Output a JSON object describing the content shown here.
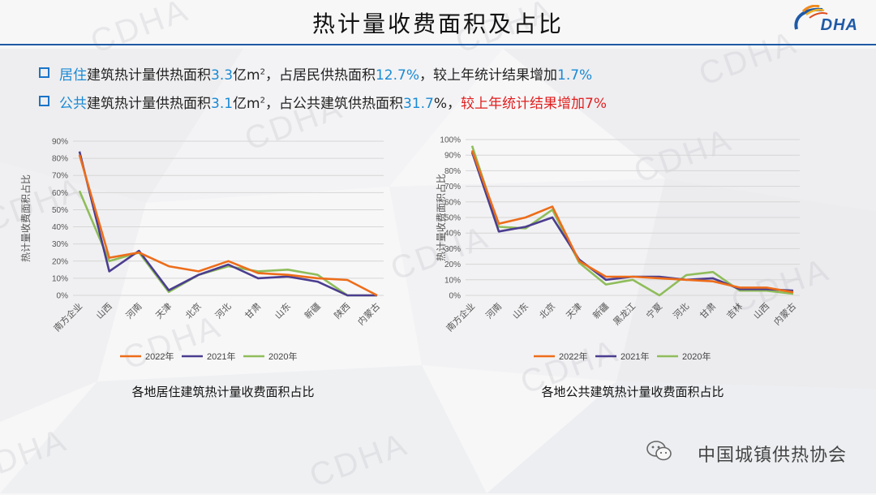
{
  "header": {
    "title": "热计量收费面积及占比",
    "logo_text": "DHA",
    "accent_color": "#1f5aa6"
  },
  "watermark": "CDHA",
  "bullets": [
    {
      "p1": "居住",
      "p2": "建筑热计量供热面积",
      "p3": "3.3",
      "p4": "亿m",
      "sup": "2",
      "p5": "，占居民供热面积",
      "p6": "12.7%",
      "p7": "，较上年统计结果增加",
      "p8": "1.7%"
    },
    {
      "p1": "公共",
      "p2": "建筑热计量供热面积",
      "p3": "3.1",
      "p4": "亿m",
      "sup": "2",
      "p5": "，占公共建筑供热面积",
      "p6": "31.7",
      "p7": "%，",
      "p8": "较上年统计结果增加7%"
    }
  ],
  "colors": {
    "2022年": "#ed6d1a",
    "2021年": "#4b3d8f",
    "2020年": "#8fbd5a",
    "highlight_blue": "#1a8ad4",
    "highlight_red": "#e02020"
  },
  "chart_data": [
    {
      "type": "line",
      "title": "各地居住建筑热计量收费面积占比",
      "ylabel": "热计量收费面积占比",
      "xlabel": "",
      "ylim": [
        0,
        0.9
      ],
      "yticks": [
        "0%",
        "10%",
        "20%",
        "30%",
        "40%",
        "50%",
        "60%",
        "70%",
        "80%",
        "90%"
      ],
      "grid": true,
      "legend": "bottom",
      "categories": [
        "南方企业",
        "山西",
        "河南",
        "天津",
        "北京",
        "河北",
        "甘肃",
        "山东",
        "新疆",
        "陕西",
        "内蒙古"
      ],
      "series": [
        {
          "name": "2022年",
          "values": [
            0.82,
            0.22,
            0.25,
            0.17,
            0.14,
            0.2,
            0.13,
            0.12,
            0.1,
            0.09,
            0.0
          ]
        },
        {
          "name": "2021年",
          "values": [
            0.84,
            0.14,
            0.26,
            0.03,
            0.12,
            0.18,
            0.1,
            0.11,
            0.08,
            0.0,
            0.0
          ]
        },
        {
          "name": "2020年",
          "values": [
            0.61,
            0.2,
            0.25,
            0.02,
            0.12,
            0.17,
            0.14,
            0.15,
            0.12,
            0.0,
            0.0
          ]
        }
      ]
    },
    {
      "type": "line",
      "title": "各地公共建筑热计量收费面积占比",
      "ylabel": "热计量收费面积占比",
      "xlabel": "",
      "ylim": [
        0,
        1.0
      ],
      "yticks": [
        "0%",
        "10%",
        "20%",
        "30%",
        "40%",
        "50%",
        "60%",
        "70%",
        "80%",
        "90%",
        "100%"
      ],
      "grid": true,
      "legend": "bottom",
      "categories": [
        "南方企业",
        "河南",
        "山东",
        "北京",
        "天津",
        "新疆",
        "黑龙江",
        "宁夏",
        "河北",
        "甘肃",
        "吉林",
        "山西",
        "内蒙古"
      ],
      "series": [
        {
          "name": "2022年",
          "values": [
            0.93,
            0.46,
            0.5,
            0.57,
            0.22,
            0.12,
            0.12,
            0.11,
            0.1,
            0.09,
            0.05,
            0.05,
            0.02
          ]
        },
        {
          "name": "2021年",
          "values": [
            0.92,
            0.41,
            0.44,
            0.5,
            0.23,
            0.1,
            0.12,
            0.12,
            0.1,
            0.11,
            0.04,
            0.04,
            0.03
          ]
        },
        {
          "name": "2020年",
          "values": [
            0.96,
            0.44,
            0.43,
            0.55,
            0.21,
            0.07,
            0.1,
            0.0,
            0.13,
            0.15,
            0.03,
            0.03,
            0.01
          ]
        }
      ]
    }
  ],
  "footer": {
    "brand": "中国城镇供热协会"
  }
}
